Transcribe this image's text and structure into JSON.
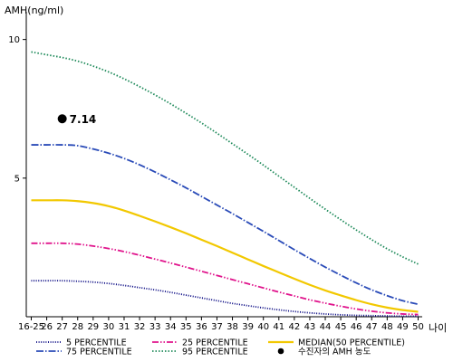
{
  "chart_data": {
    "type": "line",
    "title": "",
    "ylabel": "AMH(ng/ml)",
    "xlabel": "나이",
    "ylim": [
      0,
      11
    ],
    "y_ticks": [
      5,
      10
    ],
    "grid": false,
    "legend_position": "bottom",
    "categories": [
      "16-25",
      "26",
      "27",
      "28",
      "29",
      "30",
      "31",
      "32",
      "33",
      "34",
      "35",
      "36",
      "37",
      "38",
      "39",
      "40",
      "41",
      "42",
      "43",
      "44",
      "45",
      "46",
      "47",
      "48",
      "49",
      "50"
    ],
    "series": [
      {
        "name": "5 PERCENTILE",
        "color": "#00007f",
        "dash": "1,1.6",
        "values": [
          1.3,
          1.3,
          1.3,
          1.28,
          1.25,
          1.2,
          1.13,
          1.05,
          0.97,
          0.88,
          0.78,
          0.68,
          0.58,
          0.48,
          0.4,
          0.32,
          0.25,
          0.19,
          0.14,
          0.1,
          0.07,
          0.05,
          0.04,
          0.03,
          0.02,
          0.02
        ]
      },
      {
        "name": "25 PERCENTILE",
        "color": "#e0148c",
        "dash": "7,2,1.5,2,1.5,2",
        "values": [
          2.65,
          2.65,
          2.65,
          2.62,
          2.55,
          2.46,
          2.35,
          2.22,
          2.08,
          1.94,
          1.79,
          1.64,
          1.49,
          1.34,
          1.19,
          1.04,
          0.89,
          0.75,
          0.61,
          0.49,
          0.38,
          0.28,
          0.2,
          0.14,
          0.1,
          0.08
        ]
      },
      {
        "name": "MEDIAN(50 PERCENTILE)",
        "color": "#f2c800",
        "dash": "",
        "values": [
          4.2,
          4.2,
          4.2,
          4.17,
          4.1,
          3.99,
          3.83,
          3.64,
          3.44,
          3.23,
          3.01,
          2.78,
          2.55,
          2.31,
          2.07,
          1.83,
          1.6,
          1.37,
          1.15,
          0.95,
          0.77,
          0.6,
          0.45,
          0.33,
          0.24,
          0.18
        ]
      },
      {
        "name": "75 PERCENTILE",
        "color": "#2a4bb8",
        "dash": "8,2,1.5,2",
        "values": [
          6.2,
          6.2,
          6.2,
          6.17,
          6.05,
          5.9,
          5.71,
          5.48,
          5.22,
          4.94,
          4.65,
          4.34,
          4.03,
          3.72,
          3.4,
          3.08,
          2.75,
          2.42,
          2.1,
          1.79,
          1.5,
          1.22,
          0.97,
          0.76,
          0.58,
          0.45
        ]
      },
      {
        "name": "95 PERCENTILE",
        "color": "#1e8a5a",
        "dash": "1.5,2",
        "values": [
          9.55,
          9.45,
          9.35,
          9.22,
          9.04,
          8.83,
          8.58,
          8.3,
          8.0,
          7.68,
          7.34,
          6.99,
          6.62,
          6.24,
          5.86,
          5.47,
          5.07,
          4.67,
          4.27,
          3.88,
          3.5,
          3.13,
          2.78,
          2.45,
          2.16,
          1.9
        ]
      }
    ],
    "markers": [
      {
        "name": "수진자의 AMH 농도",
        "category": "27",
        "value": 7.14,
        "label": "7.14",
        "color": "#000000"
      }
    ]
  }
}
